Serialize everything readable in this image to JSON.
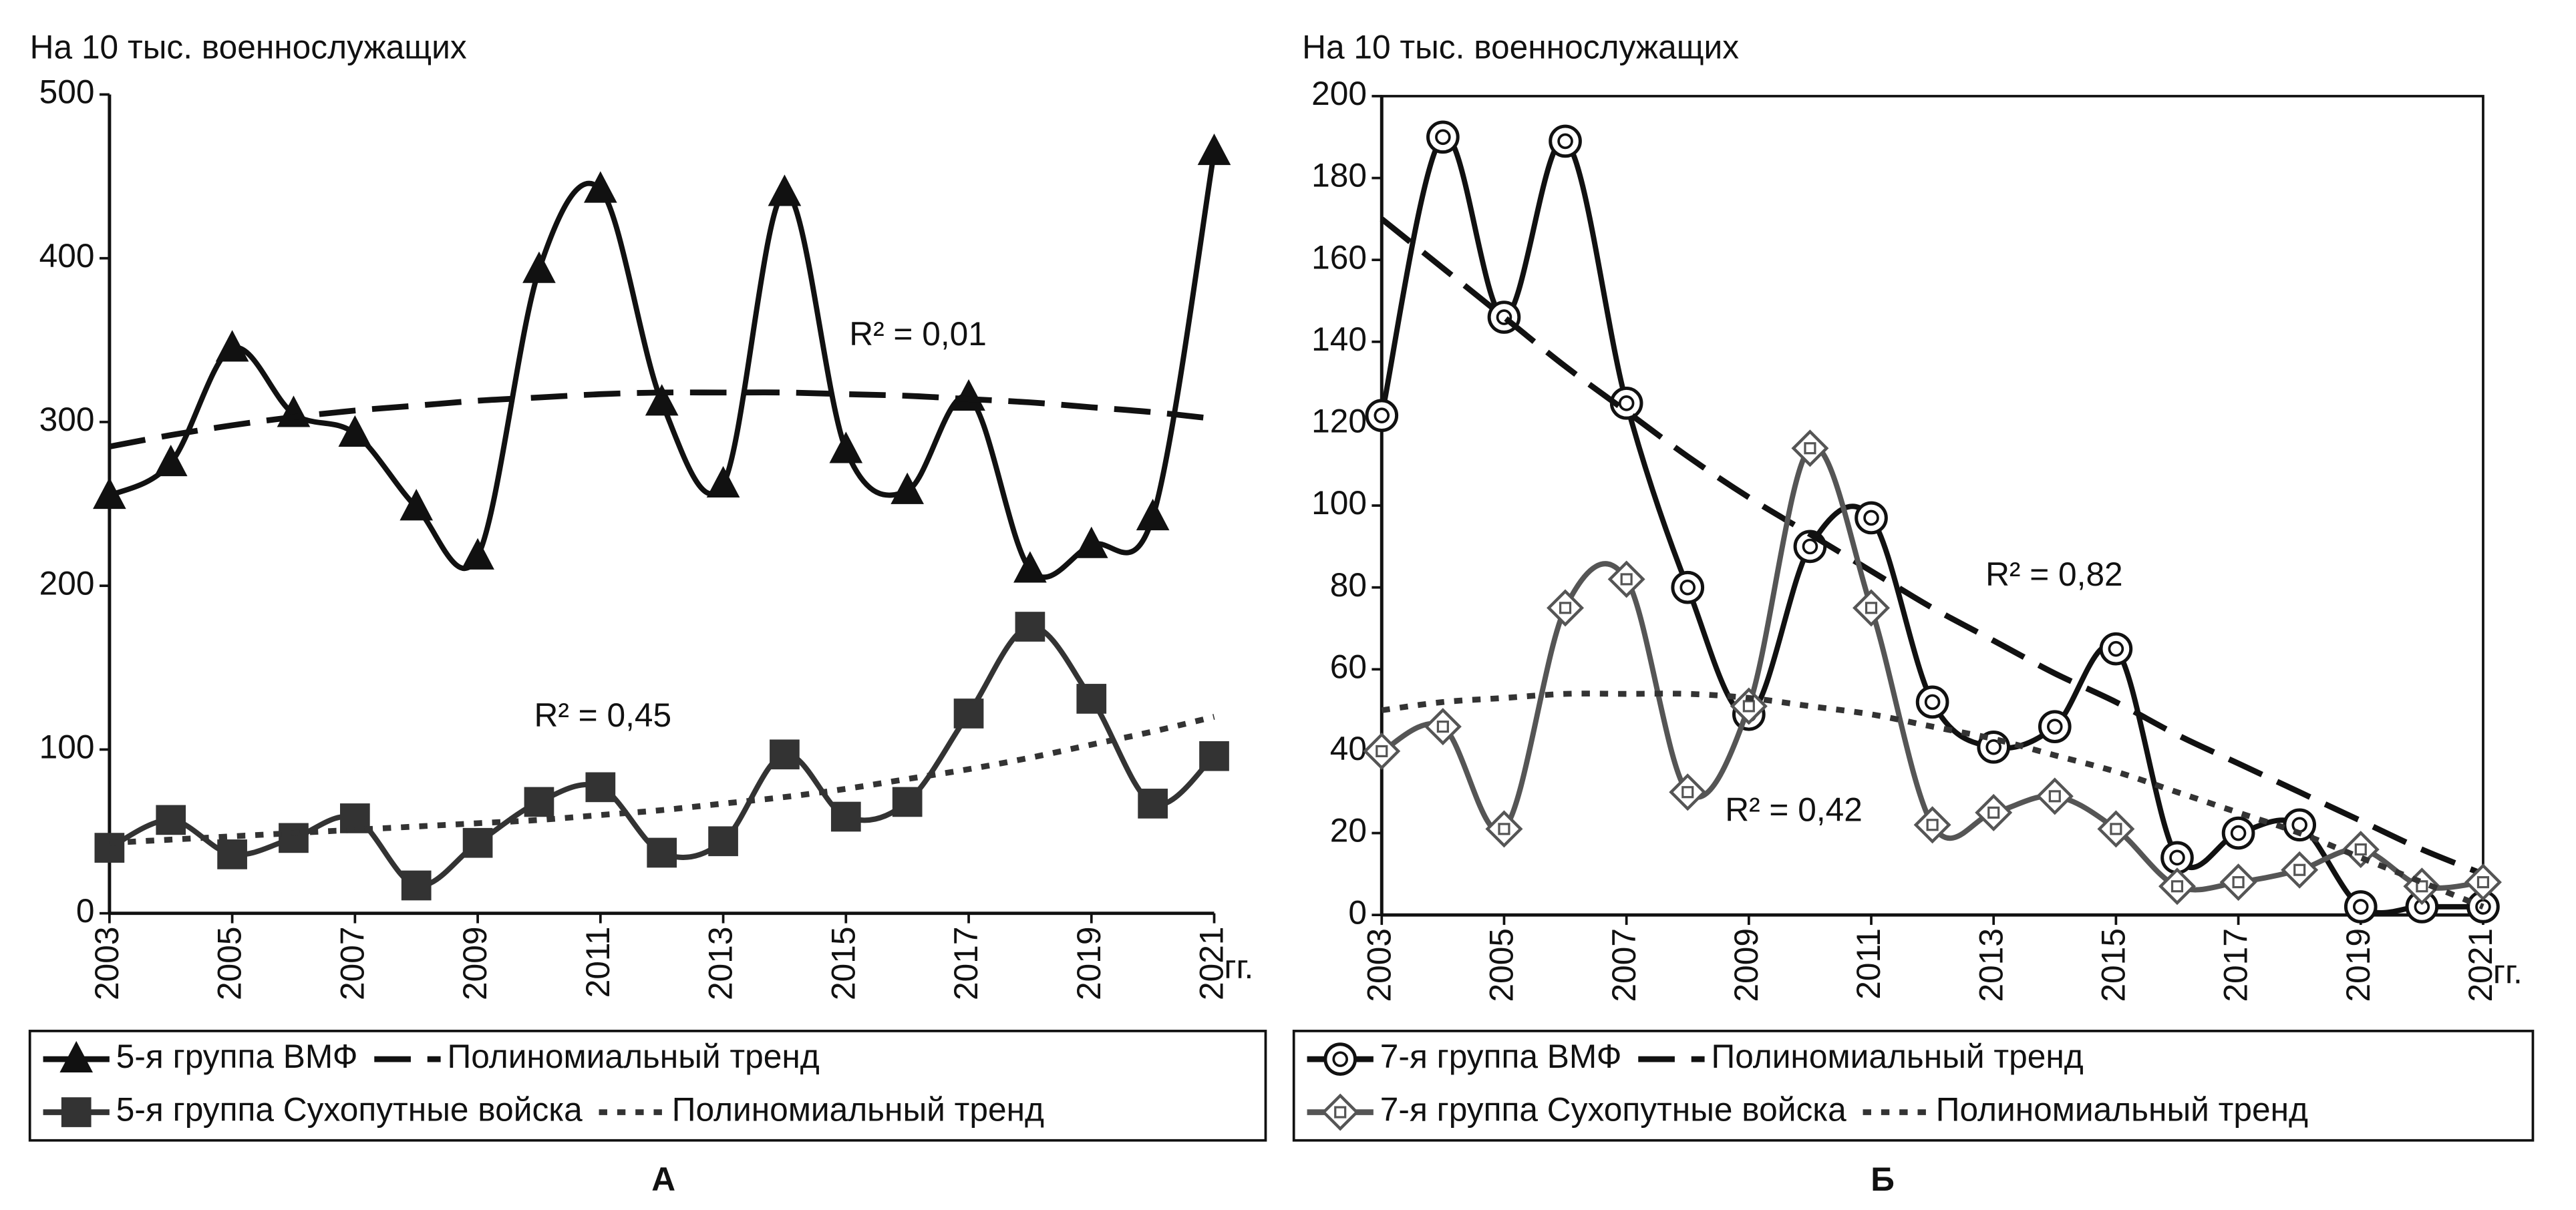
{
  "chart_data": [
    {
      "type": "line",
      "ylabel": "На 10 тыс.  военнослужащих",
      "xlabel": "гг.",
      "caption": "А",
      "x": [
        2003,
        2004,
        2005,
        2006,
        2007,
        2008,
        2009,
        2010,
        2011,
        2012,
        2013,
        2014,
        2015,
        2016,
        2017,
        2018,
        2019,
        2020,
        2021
      ],
      "xlim": [
        2003,
        2021
      ],
      "xticks": [
        2003,
        2005,
        2007,
        2009,
        2011,
        2013,
        2015,
        2017,
        2019,
        2021
      ],
      "ylim": [
        0,
        500
      ],
      "yticks": [
        0,
        100,
        200,
        300,
        400,
        500
      ],
      "grid": false,
      "frame": false,
      "smooth": true,
      "series": [
        {
          "name": "5-я группа ВМФ",
          "color": "#111111",
          "marker": "triangle",
          "dash": "solid",
          "values": [
            255,
            275,
            345,
            305,
            293,
            248,
            218,
            393,
            442,
            312,
            262,
            440,
            283,
            258,
            315,
            210,
            225,
            242,
            465
          ]
        },
        {
          "name": "Полиномиальный тренд",
          "color": "#111111",
          "marker": "none",
          "dash": "long",
          "values": [
            285,
            292,
            298,
            303,
            307,
            310,
            313,
            315,
            317,
            318,
            318,
            318,
            317,
            316,
            314,
            312,
            309,
            306,
            302
          ]
        },
        {
          "name": "5-я группа Сухопутные войска",
          "color": "#333333",
          "marker": "square",
          "dash": "solid",
          "values": [
            40,
            57,
            36,
            46,
            58,
            17,
            43,
            68,
            77,
            37,
            44,
            97,
            59,
            68,
            122,
            175,
            131,
            67,
            96
          ]
        },
        {
          "name": "Полиномиальный тренд",
          "color": "#333333",
          "marker": "none",
          "dash": "dot",
          "values": [
            43,
            45,
            47,
            49,
            51,
            53,
            55,
            57,
            60,
            63,
            67,
            71,
            76,
            82,
            88,
            95,
            103,
            111,
            120
          ]
        }
      ],
      "annotations": [
        "R² = 0,01",
        "R² = 0,45"
      ]
    },
    {
      "type": "line",
      "ylabel": "На 10 тыс.  военнослужащих",
      "xlabel": "гг.",
      "caption": "Б",
      "x": [
        2003,
        2004,
        2005,
        2006,
        2007,
        2008,
        2009,
        2010,
        2011,
        2012,
        2013,
        2014,
        2015,
        2016,
        2017,
        2018,
        2019,
        2020,
        2021
      ],
      "xlim": [
        2003,
        2021
      ],
      "xticks": [
        2003,
        2005,
        2007,
        2009,
        2011,
        2013,
        2015,
        2017,
        2019,
        2021
      ],
      "ylim": [
        0,
        200
      ],
      "yticks": [
        0,
        20,
        40,
        60,
        80,
        100,
        120,
        140,
        160,
        180,
        200
      ],
      "grid": false,
      "frame": true,
      "smooth": true,
      "series": [
        {
          "name": "7-я группа ВМФ",
          "color": "#111111",
          "marker": "circle-dot",
          "dash": "solid",
          "values": [
            122,
            190,
            146,
            189,
            125,
            80,
            49,
            90,
            97,
            52,
            41,
            46,
            65,
            14,
            20,
            22,
            2,
            2,
            2
          ]
        },
        {
          "name": "Полиномиальный тренд",
          "color": "#111111",
          "marker": "none",
          "dash": "long",
          "values": [
            170,
            158,
            146,
            134,
            123,
            112,
            102,
            93,
            84,
            75,
            67,
            59,
            52,
            44,
            37,
            30,
            23,
            16,
            10
          ]
        },
        {
          "name": "7-я группа Сухопутные войска",
          "color": "#555555",
          "marker": "diamond-square",
          "dash": "solid",
          "values": [
            40,
            46,
            21,
            75,
            82,
            30,
            51,
            114,
            75,
            22,
            25,
            29,
            21,
            7,
            8,
            11,
            16,
            7,
            8
          ]
        },
        {
          "name": "Полиномиальный тренд",
          "color": "#333333",
          "marker": "none",
          "dash": "dot",
          "values": [
            50,
            52,
            53,
            54,
            54,
            54,
            53,
            51,
            49,
            46,
            43,
            39,
            35,
            30,
            25,
            20,
            14,
            8,
            2
          ]
        }
      ],
      "annotations": [
        "R² = 0,82",
        "R² = 0,42"
      ]
    }
  ]
}
